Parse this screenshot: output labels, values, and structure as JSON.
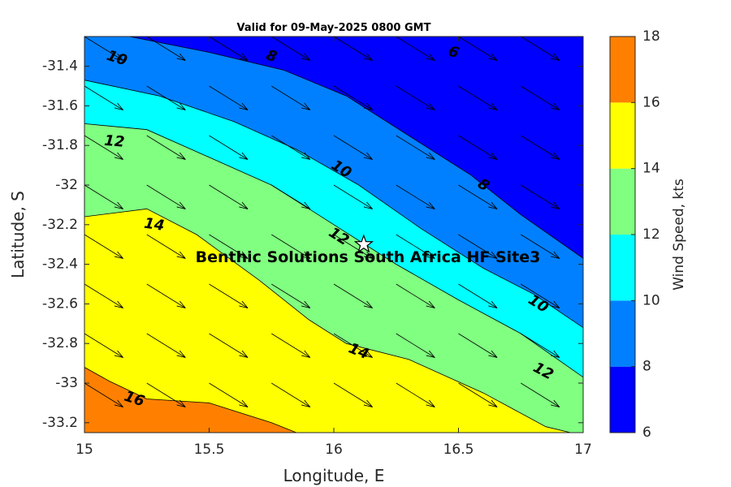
{
  "chart_data": {
    "type": "contour",
    "title": "Valid for 09-May-2025 0800 GMT",
    "xlabel": "Longitude, E",
    "ylabel": "Latitude, S",
    "xlim": [
      15,
      17
    ],
    "ylim": [
      -33.25,
      -31.25
    ],
    "x_ticks": [
      15,
      15.5,
      16,
      16.5,
      17
    ],
    "y_ticks": [
      -31.4,
      -31.6,
      -31.8,
      -32,
      -32.2,
      -32.4,
      -32.6,
      -32.8,
      -33,
      -33.2
    ],
    "x_tick_labels": [
      "15",
      "15.5",
      "16",
      "16.5",
      "17"
    ],
    "y_tick_labels": [
      "-31.4",
      "-31.6",
      "-31.8",
      "-32",
      "-32.2",
      "-32.4",
      "-32.6",
      "-32.8",
      "-33",
      "-33.2"
    ],
    "colorbar": {
      "label": "Wind Speed, kts",
      "levels": [
        6,
        8,
        10,
        12,
        14,
        16,
        18
      ],
      "tick_labels": [
        "6",
        "8",
        "10",
        "12",
        "14",
        "16",
        "18"
      ],
      "colors": [
        "#0000ff",
        "#0080ff",
        "#00ffff",
        "#80ff80",
        "#ffff00",
        "#ff8000"
      ]
    },
    "contour_lines": [
      {
        "level": 8,
        "points": [
          [
            15.18,
            -31.25
          ],
          [
            15.5,
            -31.33
          ],
          [
            15.8,
            -31.42
          ],
          [
            16.05,
            -31.55
          ],
          [
            16.3,
            -31.75
          ],
          [
            16.55,
            -31.95
          ],
          [
            16.75,
            -32.15
          ],
          [
            17.0,
            -32.37
          ]
        ]
      },
      {
        "level": 10,
        "points": [
          [
            15.0,
            -31.47
          ],
          [
            15.3,
            -31.55
          ],
          [
            15.6,
            -31.68
          ],
          [
            15.85,
            -31.82
          ],
          [
            16.1,
            -32.0
          ],
          [
            16.35,
            -32.22
          ],
          [
            16.6,
            -32.42
          ],
          [
            16.8,
            -32.55
          ],
          [
            17.0,
            -32.72
          ]
        ]
      },
      {
        "level": 12,
        "points": [
          [
            15.0,
            -31.69
          ],
          [
            15.25,
            -31.72
          ],
          [
            15.5,
            -31.86
          ],
          [
            15.75,
            -32.0
          ],
          [
            16.0,
            -32.2
          ],
          [
            16.25,
            -32.4
          ],
          [
            16.5,
            -32.58
          ],
          [
            16.75,
            -32.75
          ],
          [
            17.0,
            -32.97
          ]
        ]
      },
      {
        "level": 14,
        "points": [
          [
            15.0,
            -32.16
          ],
          [
            15.25,
            -32.12
          ],
          [
            15.45,
            -32.25
          ],
          [
            15.7,
            -32.48
          ],
          [
            15.9,
            -32.68
          ],
          [
            16.05,
            -32.8
          ],
          [
            16.3,
            -32.88
          ],
          [
            16.6,
            -33.05
          ],
          [
            16.85,
            -33.22
          ],
          [
            16.95,
            -33.25
          ]
        ]
      },
      {
        "level": 16,
        "points": [
          [
            15.0,
            -32.92
          ],
          [
            15.1,
            -32.99
          ],
          [
            15.25,
            -33.08
          ],
          [
            15.5,
            -33.1
          ],
          [
            15.75,
            -33.2
          ],
          [
            15.85,
            -33.25
          ]
        ]
      }
    ],
    "contour_labels": [
      {
        "text": "10",
        "x": 15.13,
        "y": -31.36,
        "angle": 18
      },
      {
        "text": "8",
        "x": 15.75,
        "y": -31.35,
        "angle": 18
      },
      {
        "text": "6",
        "x": 16.48,
        "y": -31.33,
        "angle": 18
      },
      {
        "text": "12",
        "x": 15.12,
        "y": -31.78,
        "angle": 5
      },
      {
        "text": "10",
        "x": 16.03,
        "y": -31.92,
        "angle": 32
      },
      {
        "text": "8",
        "x": 16.6,
        "y": -32.0,
        "angle": 32
      },
      {
        "text": "14",
        "x": 15.28,
        "y": -32.2,
        "angle": 8
      },
      {
        "text": "12",
        "x": 16.02,
        "y": -32.26,
        "angle": 32
      },
      {
        "text": "10",
        "x": 16.82,
        "y": -32.6,
        "angle": 32
      },
      {
        "text": "14",
        "x": 16.1,
        "y": -32.84,
        "angle": 22
      },
      {
        "text": "12",
        "x": 16.84,
        "y": -32.94,
        "angle": 28
      },
      {
        "text": "16",
        "x": 15.2,
        "y": -33.08,
        "angle": 18
      }
    ],
    "site": {
      "name": "Benthic Solutions South Africa HF Site3",
      "lon": 16.12,
      "lat": -32.3
    },
    "wind_vectors": {
      "lons": [
        15.0,
        15.25,
        15.5,
        15.75,
        16.0,
        16.25,
        16.5,
        16.75
      ],
      "lats": [
        -31.25,
        -31.5,
        -31.75,
        -32.0,
        -32.25,
        -32.5,
        -32.75,
        -33.0
      ],
      "direction_dx": 1.0,
      "direction_dy": -0.62,
      "note_scale_by_speed": true
    }
  }
}
